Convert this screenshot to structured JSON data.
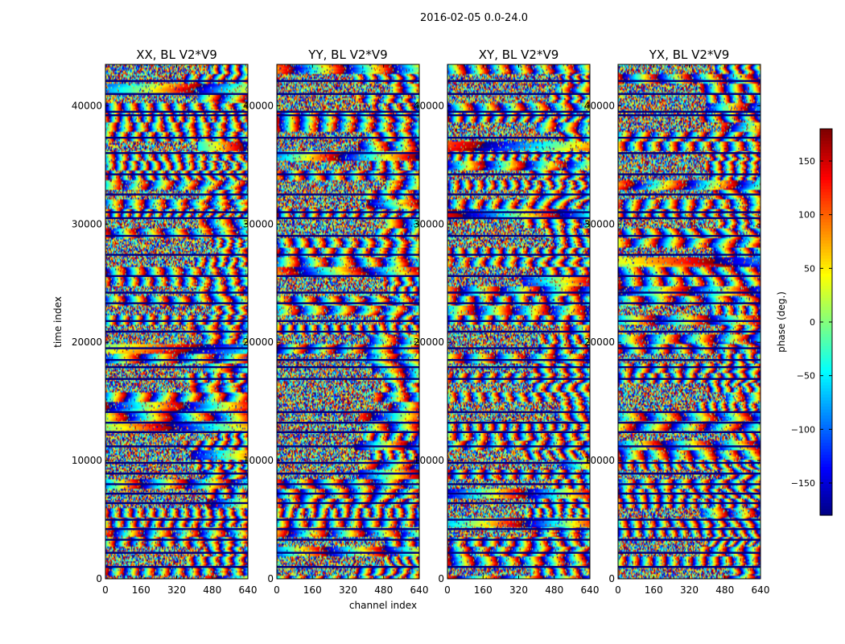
{
  "figure_title": "2016-02-05 0.0-24.0",
  "chart_data": {
    "type": "heatmap",
    "xlabel": "channel index",
    "ylabel": "time index",
    "xlim": [
      0,
      640
    ],
    "ylim": [
      0,
      43500
    ],
    "xticks": [
      0,
      160,
      320,
      480,
      640
    ],
    "yticks": [
      0,
      10000,
      20000,
      30000,
      40000
    ],
    "colorbar": {
      "label": "phase (deg.)",
      "range": [
        -180,
        180
      ],
      "ticks": [
        150,
        100,
        50,
        0,
        -50,
        -100,
        -150
      ],
      "tick_labels": [
        "150",
        "100",
        "50",
        "0",
        "−50",
        "−100",
        "−150"
      ],
      "colormap": "jet"
    },
    "panels": [
      {
        "title": "XX, BL V2*V9",
        "polarization": "XX",
        "baseline": "V2*V9"
      },
      {
        "title": "YY, BL V2*V9",
        "polarization": "YY",
        "baseline": "V2*V9"
      },
      {
        "title": "XY, BL V2*V9",
        "polarization": "XY",
        "baseline": "V2*V9"
      },
      {
        "title": "YX, BL V2*V9",
        "polarization": "YX",
        "baseline": "V2*V9"
      }
    ],
    "gap_rows": [
      1000,
      2200,
      3300,
      4200,
      5000,
      6400,
      7200,
      8000,
      8900,
      9800,
      11200,
      12400,
      13200,
      14100,
      16900,
      17900,
      18500,
      19500,
      20900,
      21800,
      23300,
      24200,
      25600,
      27400,
      29000,
      30500,
      31000,
      32500,
      34200,
      36000,
      37300,
      39200,
      39500,
      41000,
      42100
    ]
  }
}
